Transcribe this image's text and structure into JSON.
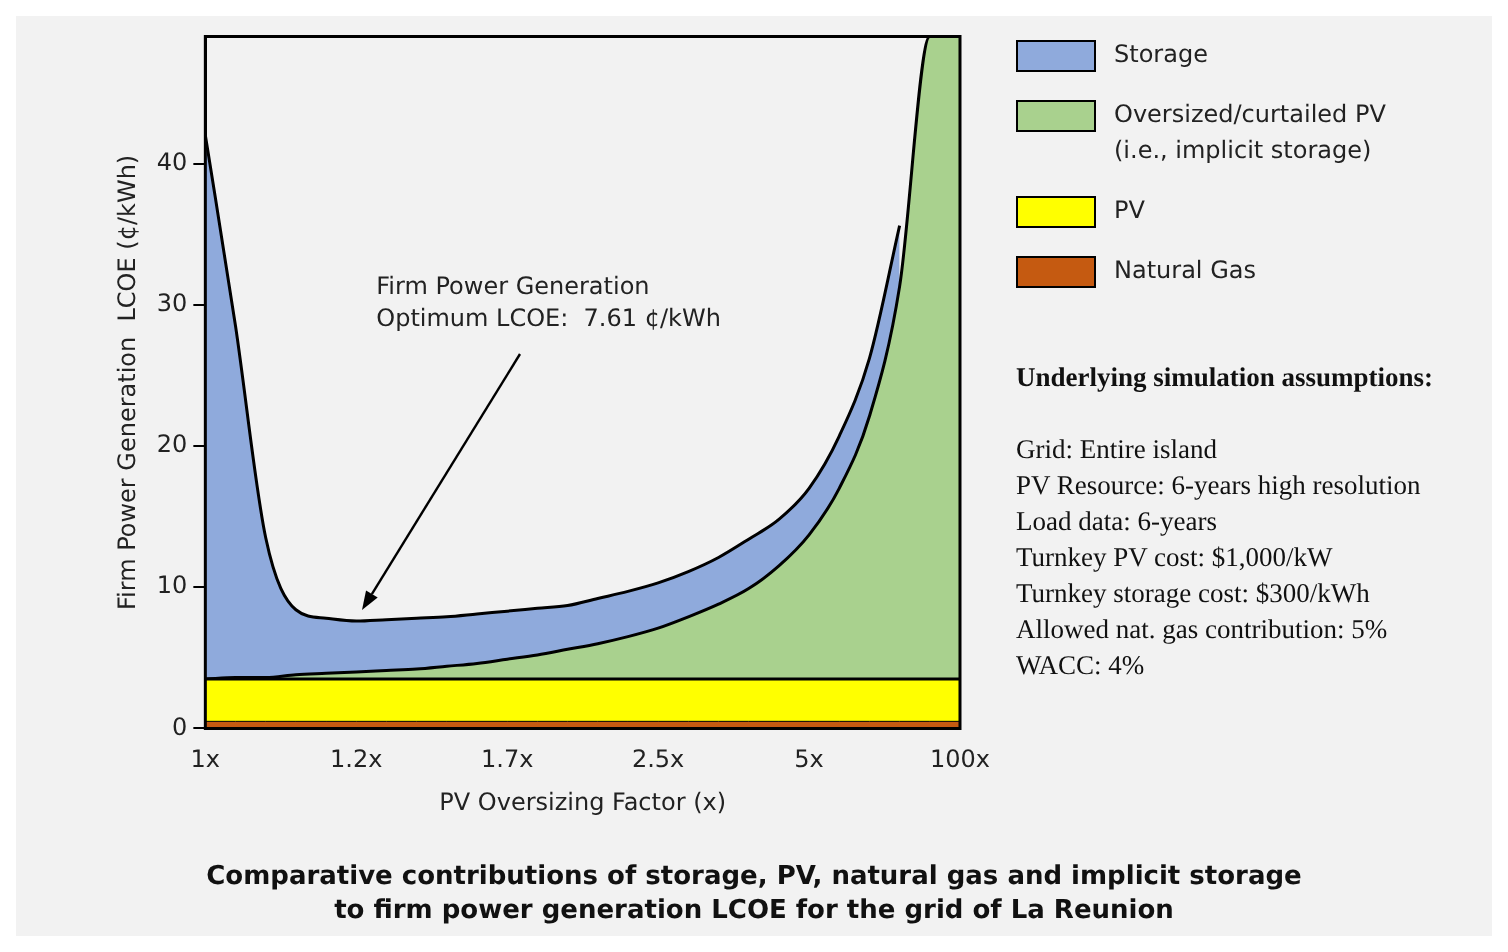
{
  "chart_data": {
    "type": "area",
    "title": "Comparative contributions of storage, PV, natural gas and implicit storage\nto firm power generation LCOE for the grid of La Reunion",
    "xlabel": "PV Oversizing Factor (x)",
    "ylabel": "Firm Power Generation  LCOE (¢/kWh)",
    "categories": [
      "1x",
      null,
      null,
      null,
      null,
      "1.2x",
      null,
      null,
      null,
      null,
      "1.7x",
      null,
      null,
      null,
      null,
      "2.5x",
      null,
      null,
      null,
      null,
      "5x",
      null,
      null,
      null,
      null,
      "100x"
    ],
    "stacked": true,
    "ylim": [
      0,
      49
    ],
    "yticks": [
      0,
      10,
      20,
      30,
      40
    ],
    "grid": false,
    "legend": "right",
    "series": [
      {
        "name": "Natural Gas",
        "color": "#c55a11",
        "values": [
          0.5,
          0.5,
          0.5,
          0.5,
          0.5,
          0.5,
          0.5,
          0.5,
          0.5,
          0.5,
          0.5,
          0.5,
          0.5,
          0.5,
          0.5,
          0.5,
          0.5,
          0.5,
          0.5,
          0.5,
          0.5,
          0.5,
          0.5,
          0.5,
          0.5,
          0.5
        ]
      },
      {
        "name": "PV",
        "color": "#ffff00",
        "values": [
          3,
          3,
          3,
          3,
          3,
          3,
          3,
          3,
          3,
          3,
          3,
          3,
          3,
          3,
          3,
          3,
          3,
          3,
          3,
          3,
          3,
          3,
          3,
          3,
          3,
          3
        ]
      },
      {
        "name": "Oversized/curtailed PV\n(i.e., implicit storage)",
        "color": "#a9d18e",
        "values": [
          0,
          0.1,
          0.1,
          0.3,
          0.4,
          0.5,
          0.6,
          0.7,
          0.9,
          1.1,
          1.4,
          1.7,
          2.1,
          2.5,
          3.0,
          3.6,
          4.4,
          5.3,
          6.4,
          8.0,
          10.2,
          13.5,
          18.6,
          27.8,
          45.5,
          45.5
        ]
      },
      {
        "name": "Storage",
        "color": "#8faadc",
        "values": [
          38.5,
          24.9,
          9.9,
          4.6,
          3.9,
          3.6,
          3.6,
          3.6,
          3.5,
          3.5,
          3.4,
          3.3,
          3.1,
          3.2,
          3.2,
          3.2,
          3.2,
          3.3,
          3.5,
          3.3,
          3.3,
          3.7,
          4.1,
          4.3,
          null,
          null
        ]
      }
    ],
    "annotations": [
      "Firm Power Generation\nOptimum LCOE:  7.61 ¢/kWh",
      "Underlying simulation assumptions:",
      "Grid: Entire island",
      "PV Resource: 6-years high resolution",
      "Load data: 6-years",
      "Turnkey PV cost: $1,000/kW",
      "Turnkey storage cost: $300/kWh",
      "Allowed nat. gas contribution: 5%",
      "WACC: 4%"
    ]
  }
}
